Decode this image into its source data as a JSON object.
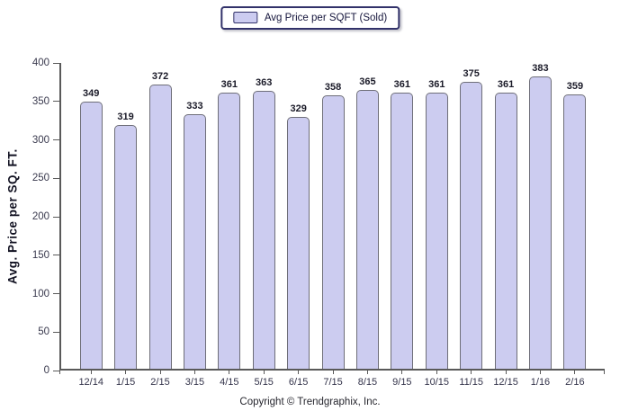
{
  "chart_data": {
    "type": "bar",
    "title": "",
    "legend_label": "Avg Price per SQFT (Sold)",
    "legend_position": "top-center",
    "categories": [
      "12/14",
      "1/15",
      "2/15",
      "3/15",
      "4/15",
      "5/15",
      "6/15",
      "7/15",
      "8/15",
      "9/15",
      "10/15",
      "11/15",
      "12/15",
      "1/16",
      "2/16"
    ],
    "values": [
      349,
      319,
      372,
      333,
      361,
      363,
      329,
      358,
      365,
      361,
      361,
      375,
      361,
      383,
      359
    ],
    "xlabel": "",
    "ylabel": "Avg. Price per SQ. FT.",
    "ylim": [
      0,
      400
    ],
    "yticks": [
      0,
      50,
      100,
      150,
      200,
      250,
      300,
      350,
      400
    ],
    "grid": false,
    "value_labels": true,
    "colors": {
      "bar_fill": "#ccccf0",
      "bar_border": "#6e6e78",
      "legend_border": "#32326a",
      "axis": "#595959"
    }
  },
  "footer": {
    "copyright": "Copyright © Trendgraphix, Inc."
  }
}
